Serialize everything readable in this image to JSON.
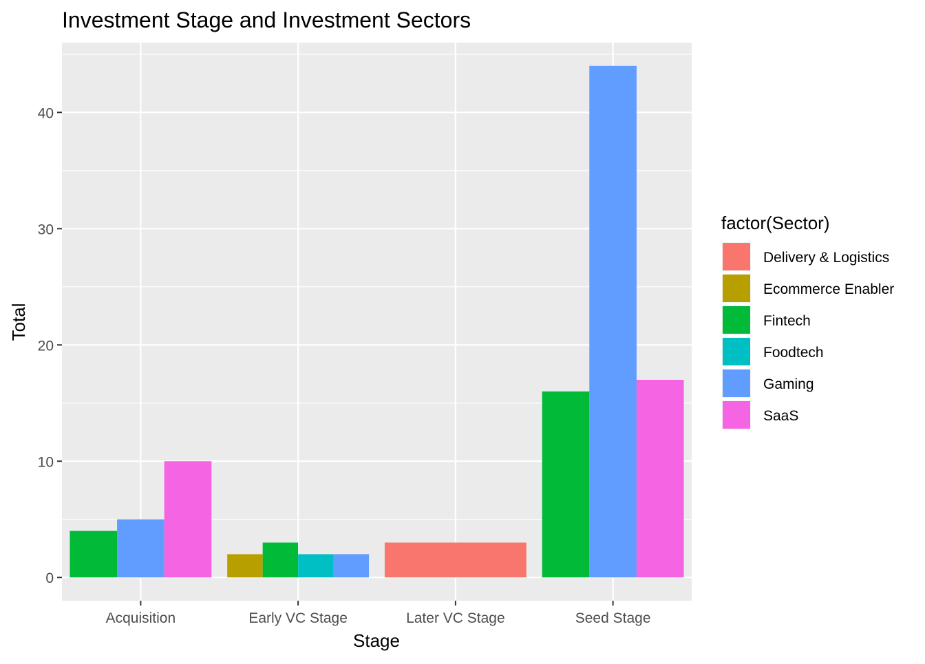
{
  "chart_data": {
    "type": "bar",
    "title": "Investment Stage and Investment Sectors",
    "xlabel": "Stage",
    "ylabel": "Total",
    "ylim": [
      -2,
      46
    ],
    "yticks": [
      0,
      10,
      20,
      30,
      40
    ],
    "grid": true,
    "legend": {
      "title": "factor(Sector)",
      "position": "right",
      "entries": [
        {
          "name": "Delivery & Logistics",
          "color": "#F8766D"
        },
        {
          "name": "Ecommerce Enabler",
          "color": "#B79F00"
        },
        {
          "name": "Fintech",
          "color": "#00BA38"
        },
        {
          "name": "Foodtech",
          "color": "#00BFC4"
        },
        {
          "name": "Gaming",
          "color": "#619CFF"
        },
        {
          "name": "SaaS",
          "color": "#F564E3"
        }
      ]
    },
    "categories": [
      "Acquisition",
      "Early VC Stage",
      "Later VC Stage",
      "Seed Stage"
    ],
    "groups": [
      {
        "category": "Acquisition",
        "bars": [
          {
            "sector": "Fintech",
            "value": 4
          },
          {
            "sector": "Gaming",
            "value": 5
          },
          {
            "sector": "SaaS",
            "value": 10
          }
        ]
      },
      {
        "category": "Early VC Stage",
        "bars": [
          {
            "sector": "Ecommerce Enabler",
            "value": 2
          },
          {
            "sector": "Fintech",
            "value": 3
          },
          {
            "sector": "Foodtech",
            "value": 2
          },
          {
            "sector": "Gaming",
            "value": 2
          }
        ]
      },
      {
        "category": "Later VC Stage",
        "bars": [
          {
            "sector": "Delivery & Logistics",
            "value": 3
          }
        ]
      },
      {
        "category": "Seed Stage",
        "bars": [
          {
            "sector": "Fintech",
            "value": 16
          },
          {
            "sector": "Gaming",
            "value": 44
          },
          {
            "sector": "SaaS",
            "value": 17
          }
        ]
      }
    ],
    "colors": {
      "panel_background": "#EBEBEB",
      "grid_major": "#FFFFFF",
      "tick_text": "#4D4D4D",
      "axis_title": "#000000"
    }
  }
}
